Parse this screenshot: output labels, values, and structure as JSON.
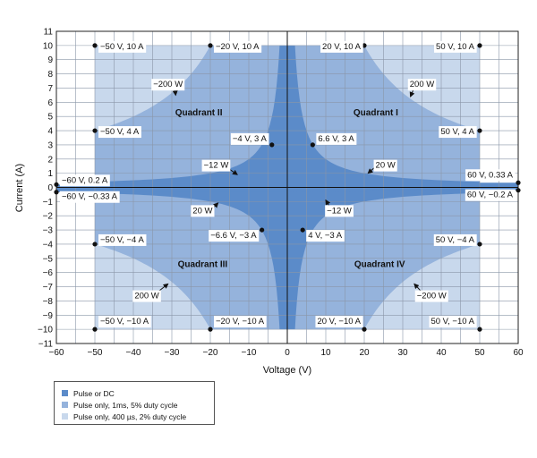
{
  "chart_data": {
    "type": "area",
    "xlabel": "Voltage (V)",
    "ylabel": "Current (A)",
    "xlim": [
      -60,
      60
    ],
    "ylim": [
      -11,
      11
    ],
    "xticks": [
      -60,
      -50,
      -40,
      -30,
      -20,
      -10,
      0,
      10,
      20,
      30,
      40,
      50,
      60
    ],
    "yticks": [
      -11,
      -10,
      -9,
      -8,
      -7,
      -6,
      -5,
      -4,
      -3,
      -2,
      -1,
      0,
      1,
      2,
      3,
      4,
      5,
      6,
      7,
      8,
      9,
      10,
      11
    ],
    "grid": true,
    "legend_placement": "bottom-left, below plot",
    "series": [
      {
        "name": "Pulse or DC",
        "color": "#5b8bc9"
      },
      {
        "name": "Pulse only, 1ms, 5% duty cycle",
        "color": "#95b3dc"
      },
      {
        "name": "Pulse only, 400 µs, 2% duty cycle",
        "color": "#c8d8ec"
      }
    ],
    "regions": {
      "pulse_400us": {
        "voltage_range": [
          -50,
          50
        ],
        "current_range": [
          -10,
          10
        ]
      },
      "pulse_1ms_power_limit_W": 200,
      "dc_power_limit_W": 20,
      "narrow_band": {
        "voltage_range": [
          -60,
          60
        ],
        "current_range": [
          -0.33,
          0.33
        ]
      }
    },
    "points": [
      {
        "x": -50,
        "y": 10,
        "label": "−50 V, 10 A"
      },
      {
        "x": -20,
        "y": 10,
        "label": "−20 V, 10 A"
      },
      {
        "x": 20,
        "y": 10,
        "label": "20 V, 10 A"
      },
      {
        "x": 50,
        "y": 10,
        "label": "50 V, 10 A"
      },
      {
        "x": -50,
        "y": 4,
        "label": "−50 V, 4 A"
      },
      {
        "x": 50,
        "y": 4,
        "label": "50 V, 4 A"
      },
      {
        "x": -4,
        "y": 3,
        "label": "−4 V, 3 A"
      },
      {
        "x": 6.6,
        "y": 3,
        "label": "6.6 V, 3 A"
      },
      {
        "x": -60,
        "y": 0.2,
        "label": "−60 V, 0.2 A"
      },
      {
        "x": -60,
        "y": -0.33,
        "label": "−60 V, −0.33 A"
      },
      {
        "x": 60,
        "y": 0.33,
        "label": "60 V, 0.33 A"
      },
      {
        "x": 60,
        "y": -0.2,
        "label": "60 V, −0.2 A"
      },
      {
        "x": -6.6,
        "y": -3,
        "label": "−6.6 V, −3 A"
      },
      {
        "x": 4,
        "y": -3,
        "label": "4 V, −3 A"
      },
      {
        "x": -50,
        "y": -4,
        "label": "−50 V, −4 A"
      },
      {
        "x": 50,
        "y": -4,
        "label": "50 V, −4 A"
      },
      {
        "x": -50,
        "y": -10,
        "label": "−50 V, −10 A"
      },
      {
        "x": -20,
        "y": -10,
        "label": "−20 V, −10 A"
      },
      {
        "x": 20,
        "y": -10,
        "label": "20 V, −10 A"
      },
      {
        "x": 50,
        "y": -10,
        "label": "50 V, −10 A"
      }
    ],
    "annotations": [
      {
        "text": "−200 W",
        "x": -31,
        "y": 7.3,
        "arrow_to": [
          -29,
          6.5
        ]
      },
      {
        "text": "200 W",
        "x": 35,
        "y": 7.3,
        "arrow_to": [
          32,
          6.4
        ]
      },
      {
        "text": "−12 W",
        "x": -18.5,
        "y": 1.6,
        "arrow_to": [
          -13,
          0.9
        ]
      },
      {
        "text": "20 W",
        "x": 25.5,
        "y": 1.6,
        "arrow_to": [
          21,
          1.0
        ]
      },
      {
        "text": "20 W",
        "x": -22,
        "y": -1.6,
        "arrow_to": [
          -18,
          -1.1
        ]
      },
      {
        "text": "−12 W",
        "x": 13.5,
        "y": -1.6,
        "arrow_to": [
          10,
          -0.9
        ]
      },
      {
        "text": "200 W",
        "x": -36.5,
        "y": -7.6,
        "arrow_to": [
          -31,
          -6.8
        ]
      },
      {
        "text": "−200 W",
        "x": 37.5,
        "y": -7.6,
        "arrow_to": [
          33,
          -6.8
        ]
      }
    ],
    "quadrant_labels": [
      {
        "text": "Quadrant II",
        "x": -23,
        "y": 5.3
      },
      {
        "text": "Quadrant I",
        "x": 23,
        "y": 5.3
      },
      {
        "text": "Quadrant III",
        "x": -22,
        "y": -5.4
      },
      {
        "text": "Quadrant IV",
        "x": 24,
        "y": -5.4
      }
    ]
  }
}
